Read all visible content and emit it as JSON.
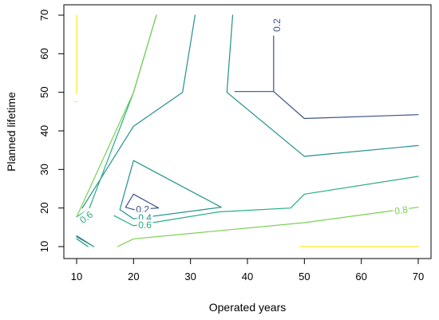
{
  "chart_data": {
    "type": "contour",
    "xlabel": "Operated years",
    "ylabel": "Planned lifetime",
    "xlim": [
      10,
      70
    ],
    "ylim": [
      10,
      70
    ],
    "x_ticks": [
      10,
      20,
      30,
      40,
      50,
      60,
      70
    ],
    "y_ticks": [
      10,
      20,
      30,
      40,
      50,
      60,
      70
    ],
    "levels": [
      {
        "level": "0.2",
        "color": "#3b528b",
        "paths": [
          [
            [
              37.8,
              50.2
            ],
            [
              44.6,
              50.2
            ],
            [
              44.6,
              64.6
            ]
          ],
          [
            [
              44.6,
              50.2
            ],
            [
              50,
              43.2
            ],
            [
              70,
              44.2
            ]
          ],
          [
            [
              10,
              12.8
            ],
            [
              13,
              10
            ]
          ],
          [
            [
              18.6,
              20.2
            ],
            [
              20,
              19.6
            ],
            [
              24.4,
              20
            ],
            [
              20,
              23.6
            ],
            [
              18.6,
              20.2
            ]
          ]
        ],
        "labels": [
          {
            "x": 45.2,
            "y": 67.4,
            "rotate": -90
          },
          {
            "x": 21.6,
            "y": 19.6,
            "rotate": 0
          }
        ]
      },
      {
        "level": "0.4",
        "color": "#21918c",
        "paths": [
          [
            [
              30.8,
              70
            ],
            [
              28.6,
              50
            ],
            [
              20,
              41.2
            ],
            [
              11,
              20
            ]
          ],
          [
            [
              37.4,
              70
            ],
            [
              36.4,
              50
            ],
            [
              50,
              33.4
            ],
            [
              70,
              36.2
            ]
          ],
          [
            [
              10,
              12
            ],
            [
              12,
              10
            ]
          ],
          [
            [
              17.6,
              19.6
            ],
            [
              20,
              32.3
            ],
            [
              35.4,
              20.2
            ],
            [
              20,
              17.2
            ],
            [
              17.6,
              19.6
            ]
          ]
        ],
        "labels": [
          {
            "x": 22,
            "y": 17.5,
            "rotate": 0
          }
        ]
      },
      {
        "level": "0.6",
        "color": "#27ad81",
        "paths": [
          [
            [
              10,
              17.7
            ],
            [
              12.2,
              19.8
            ],
            [
              20,
              50
            ],
            [
              24,
              70
            ]
          ],
          [
            [
              50,
              23.6
            ],
            [
              70,
              28.2
            ]
          ],
          [
            [
              16.6,
              18
            ],
            [
              20,
              15.4
            ],
            [
              35,
              19
            ],
            [
              47.6,
              20
            ],
            [
              50,
              23.6
            ]
          ],
          [
            [
              10,
              12.5
            ],
            [
              13,
              10
            ]
          ]
        ],
        "labels": [
          {
            "x": 11.7,
            "y": 17.6,
            "rotate": -38
          },
          {
            "x": 22,
            "y": 15.6,
            "rotate": 0
          }
        ]
      },
      {
        "level": "0.8",
        "color": "#7ad151",
        "paths": [
          [
            [
              17.2,
              10
            ],
            [
              20,
              12
            ],
            [
              50,
              16.2
            ],
            [
              70,
              20.2
            ]
          ],
          [
            [
              10,
              17.7
            ],
            [
              20,
              50
            ],
            [
              24,
              70
            ]
          ]
        ],
        "labels": [
          {
            "x": 67,
            "y": 19.4,
            "rotate": -8
          }
        ]
      },
      {
        "level": "",
        "color": "#fde725",
        "paths": [
          [
            [
              10,
              70
            ],
            [
              10,
              49.6
            ]
          ],
          [
            [
              9.6,
              47.6
            ],
            [
              10,
              47.6
            ]
          ],
          [
            [
              49.2,
              10
            ],
            [
              70,
              10
            ]
          ]
        ],
        "labels": []
      }
    ]
  }
}
